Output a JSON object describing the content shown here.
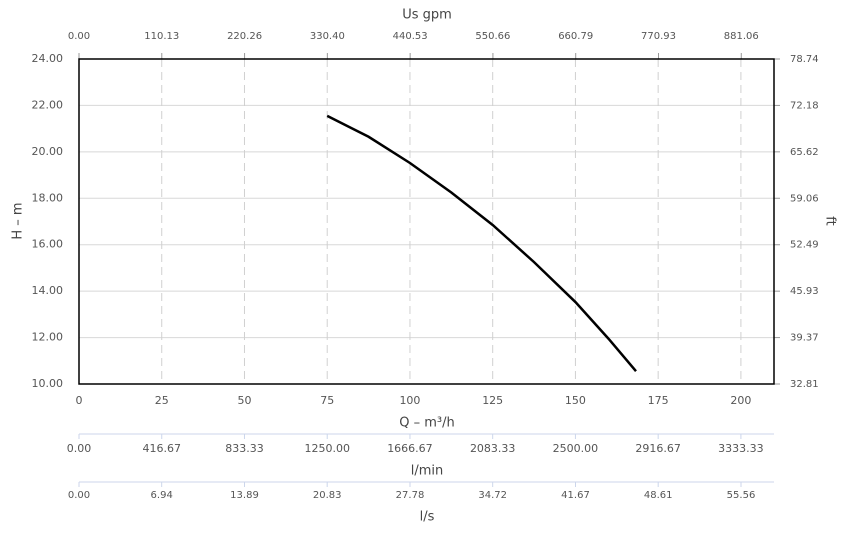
{
  "chart_data": {
    "type": "line",
    "x2label": "Us gpm",
    "xlabel": "Q – m³/h",
    "ylabel": "H – m",
    "y2label": "ft",
    "grid": true,
    "xlim": [
      0,
      210
    ],
    "xticks": [
      0,
      25,
      50,
      75,
      100,
      125,
      150,
      175,
      200
    ],
    "ylim": [
      10,
      24
    ],
    "yticks": [
      {
        "value": 10,
        "label": "10.00"
      },
      {
        "value": 12,
        "label": "12.00"
      },
      {
        "value": 14,
        "label": "14.00"
      },
      {
        "value": 16,
        "label": "16.00"
      },
      {
        "value": 18,
        "label": "18.00"
      },
      {
        "value": 20,
        "label": "20.00"
      },
      {
        "value": 22,
        "label": "22.00"
      },
      {
        "value": 24,
        "label": "24.00"
      }
    ],
    "y2lim": [
      32.81,
      78.74
    ],
    "y2ticks": [
      32.81,
      39.37,
      45.93,
      52.49,
      59.06,
      65.62,
      72.18,
      78.74
    ],
    "x2lim": [
      0,
      924.6
    ],
    "x2ticks": [
      {
        "value": 0,
        "label": "0.00"
      },
      110.13,
      220.26,
      {
        "value": 330.4,
        "label": "330.40"
      },
      440.53,
      550.66,
      660.79,
      770.93,
      881.06
    ],
    "extra_axes": [
      {
        "label": "l/min",
        "lim": [
          0,
          3500
        ],
        "ticks": [
          {
            "value": 0,
            "label": "0.00"
          },
          416.67,
          833.33,
          {
            "value": 1250,
            "label": "1250.00"
          },
          1666.67,
          2083.33,
          {
            "value": 2500,
            "label": "2500.00"
          },
          2916.67,
          3333.33
        ]
      },
      {
        "label": "l/s",
        "lim": [
          0,
          58.33
        ],
        "ticks": [
          {
            "value": 0,
            "label": "0.00"
          },
          6.94,
          13.89,
          20.83,
          27.78,
          34.72,
          41.67,
          48.61,
          55.56
        ]
      }
    ],
    "x": [
      75,
      87.5,
      100,
      112.5,
      125,
      137.5,
      150,
      160,
      168.3
    ],
    "series": [
      {
        "color": "#000000",
        "values": [
          21.55,
          20.65,
          19.52,
          18.25,
          16.85,
          15.25,
          13.53,
          11.95,
          10.55
        ]
      }
    ]
  }
}
